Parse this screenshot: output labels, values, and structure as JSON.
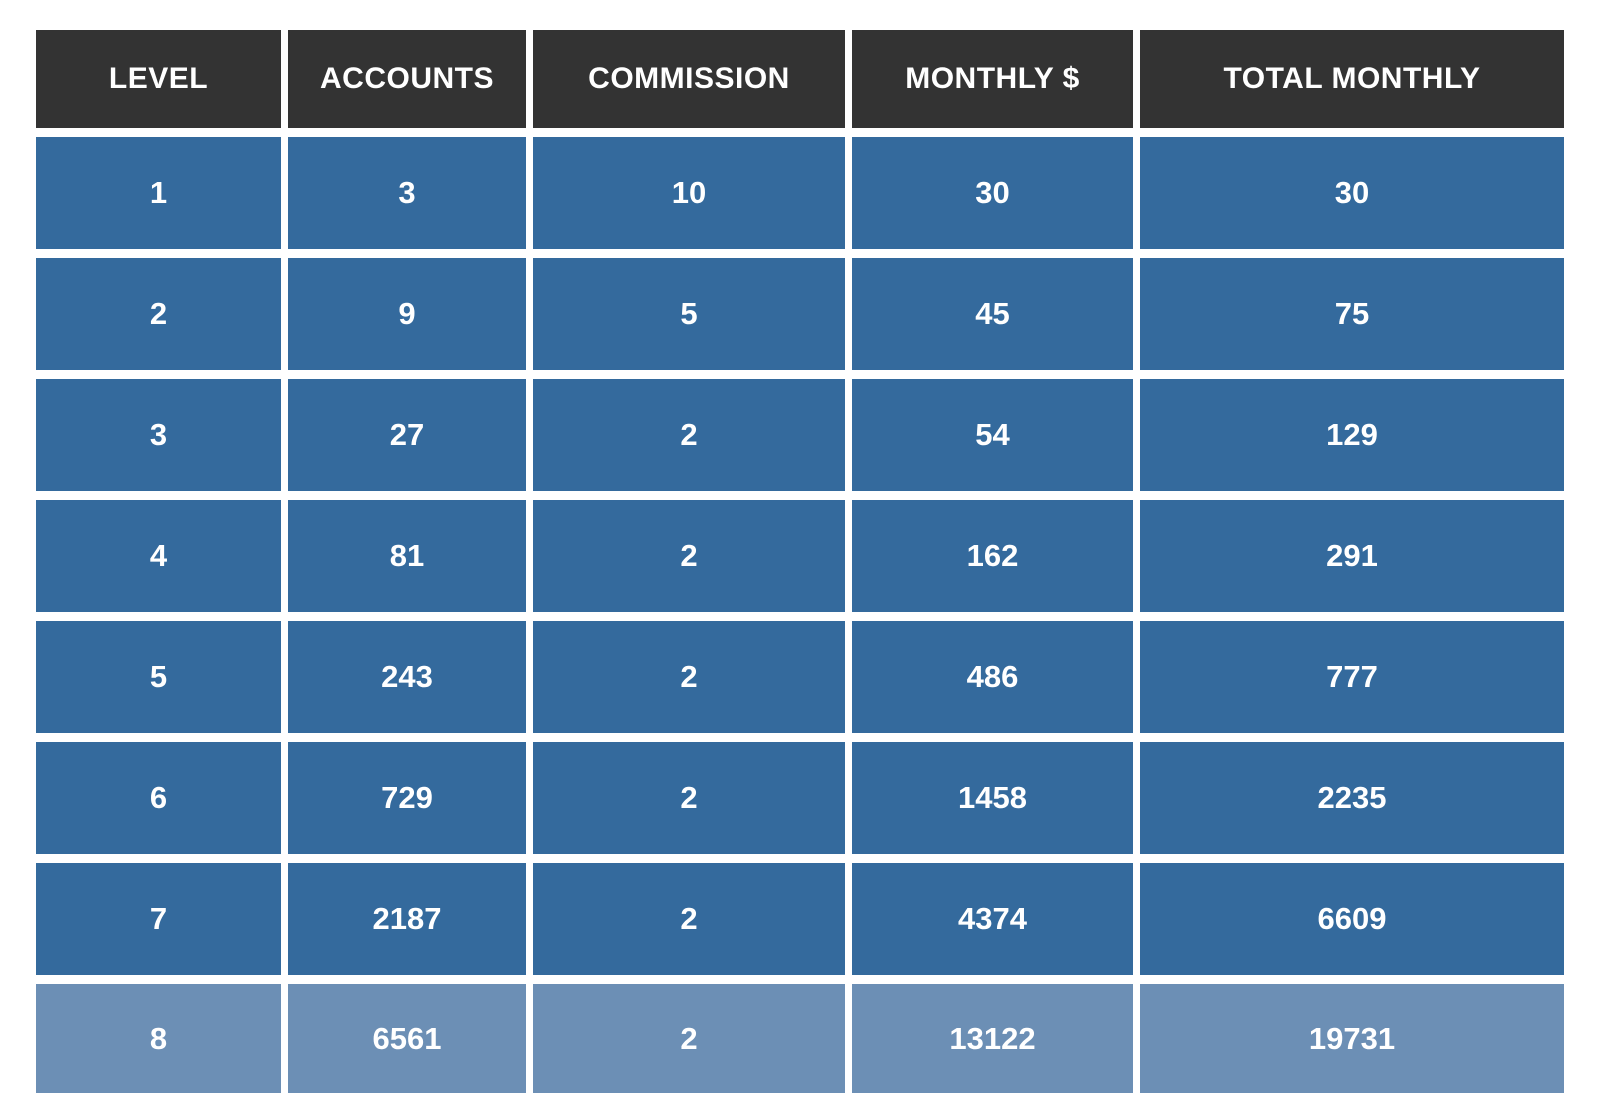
{
  "chart_data": {
    "type": "table",
    "title": "",
    "columns": [
      "LEVEL",
      "ACCOUNTS",
      "COMMISSION",
      "MONTHLY $",
      "TOTAL MONTHLY"
    ],
    "rows": [
      [
        "1",
        "3",
        "10",
        "30",
        "30"
      ],
      [
        "2",
        "9",
        "5",
        "45",
        "75"
      ],
      [
        "3",
        "27",
        "2",
        "54",
        "129"
      ],
      [
        "4",
        "81",
        "2",
        "162",
        "291"
      ],
      [
        "5",
        "243",
        "2",
        "486",
        "777"
      ],
      [
        "6",
        "729",
        "2",
        "1458",
        "2235"
      ],
      [
        "7",
        "2187",
        "2",
        "4374",
        "6609"
      ],
      [
        "8",
        "6561",
        "2",
        "13122",
        "19731"
      ]
    ],
    "highlighted_row_index": 7,
    "layout": {
      "gridlines": "white gutters between cells",
      "text_alignment": "center"
    }
  },
  "colors": {
    "header_bg": "#333333",
    "row_bg": "#346A9D",
    "highlight_row_bg": "#6C8FB5",
    "text": "#FFFFFF",
    "page_bg": "#FFFFFF"
  }
}
